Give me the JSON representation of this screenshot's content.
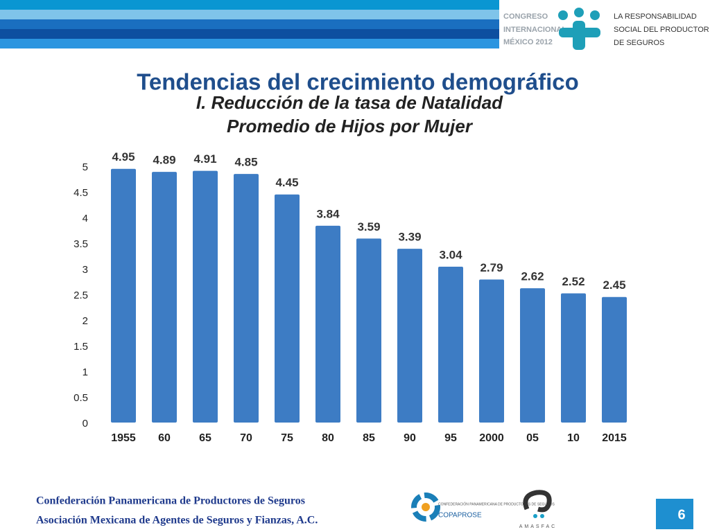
{
  "header": {
    "congress": [
      "CONGRESO",
      "INTERNACIONAL",
      "MÉXICO 2012"
    ],
    "motto": [
      "LA RESPONSABILIDAD",
      "SOCIAL DEL PRODUCTOR",
      "DE SEGUROS"
    ]
  },
  "slide": {
    "title": "Tendencias del crecimiento demográfico"
  },
  "chart_data": {
    "type": "bar",
    "title": "I. Reducción de la tasa de Natalidad",
    "subtitle": "Promedio de Hijos por Mujer",
    "categories": [
      "1955",
      "60",
      "65",
      "70",
      "75",
      "80",
      "85",
      "90",
      "95",
      "2000",
      "05",
      "10",
      "2015"
    ],
    "values": [
      4.95,
      4.89,
      4.91,
      4.85,
      4.45,
      3.84,
      3.59,
      3.39,
      3.04,
      2.79,
      2.62,
      2.52,
      2.45
    ],
    "color": "#3d7cc4",
    "ylim": [
      0,
      5
    ],
    "yticks": [
      0,
      0.5,
      1,
      1.5,
      2,
      2.5,
      3,
      3.5,
      4,
      4.5,
      5
    ],
    "grid": false
  },
  "footer": {
    "lines": [
      "Confederación Panamericana de Productores de Seguros",
      "Asociación Mexicana de Agentes de Seguros y Fianzas, A.C."
    ],
    "logo1_small": "CONFEDERACIÓN PANAMERICANA DE PRODUCTORES DE SEGUROS",
    "logo1_name": "COPAPROSE",
    "logo2_name": "AMASFAC",
    "page_number": "6"
  }
}
